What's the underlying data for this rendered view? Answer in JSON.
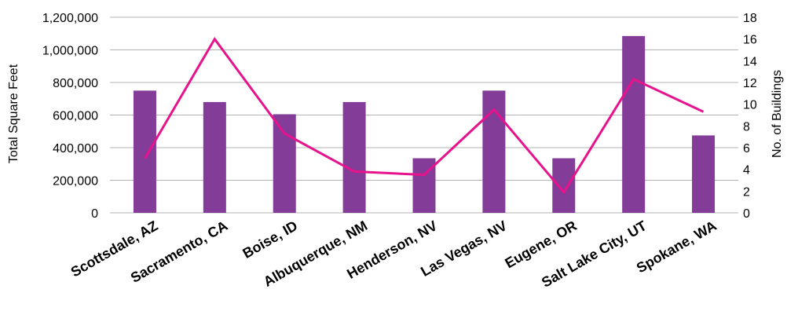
{
  "chart_data": {
    "type": "bar",
    "categories": [
      "Scottsdale, AZ",
      "Sacramento, CA",
      "Boise, ID",
      "Albuquerque, NM",
      "Henderson, NV",
      "Las Vegas, NV",
      "Eugene, OR",
      "Salt Lake City, UT",
      "Spokane, WA"
    ],
    "series": [
      {
        "type": "bar",
        "axis": "left",
        "values": [
          750000,
          680000,
          605000,
          680000,
          335000,
          750000,
          335000,
          1085000,
          475000
        ],
        "color": "#833C97"
      },
      {
        "type": "line",
        "axis": "right",
        "values": [
          5,
          16,
          7.3,
          3.8,
          3.5,
          9.5,
          1.9,
          12.3,
          9.3
        ],
        "color": "#E6138D"
      }
    ],
    "ylabel": "Total Square Feet",
    "y2label": "No. of Buildings",
    "ylim": [
      0,
      1200000
    ],
    "y2lim": [
      0,
      18
    ],
    "yticks": [
      "0",
      "200,000",
      "400,000",
      "600,000",
      "800,000",
      "1,000,000",
      "1,200,000"
    ],
    "y2ticks": [
      "0",
      "2",
      "4",
      "6",
      "8",
      "10",
      "12",
      "14",
      "16",
      "18"
    ],
    "grid": true,
    "legend": "none"
  }
}
